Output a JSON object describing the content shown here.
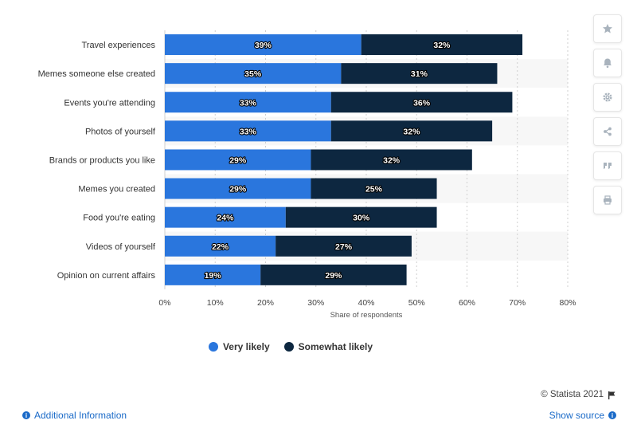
{
  "chart_data": {
    "type": "bar",
    "orientation": "horizontal",
    "stacked": true,
    "categories": [
      "Travel experiences",
      "Memes someone else created",
      "Events you're attending",
      "Photos of yourself",
      "Brands or products you like",
      "Memes you created",
      "Food you're eating",
      "Videos of yourself",
      "Opinion on current affairs"
    ],
    "series": [
      {
        "name": "Very likely",
        "color": "#2a76dd",
        "values": [
          39,
          35,
          33,
          33,
          29,
          29,
          24,
          22,
          19
        ],
        "labels": [
          "39%",
          "35%",
          "33%",
          "33%",
          "29%",
          "29%",
          "24%",
          "22%",
          "19%"
        ]
      },
      {
        "name": "Somewhat likely",
        "color": "#0d2740",
        "values": [
          32,
          31,
          36,
          32,
          32,
          25,
          30,
          27,
          29
        ],
        "labels": [
          "32%",
          "31%",
          "36%",
          "32%",
          "32%",
          "25%",
          "30%",
          "27%",
          "29%"
        ]
      }
    ],
    "xlabel": "Share of respondents",
    "xlim": [
      0,
      80
    ],
    "xticks": [
      0,
      10,
      20,
      30,
      40,
      50,
      60,
      70,
      80
    ],
    "xtick_labels": [
      "0%",
      "10%",
      "20%",
      "30%",
      "40%",
      "50%",
      "60%",
      "70%",
      "80%"
    ],
    "grid": true,
    "legend_position": "bottom"
  },
  "legend": {
    "very_likely": "Very likely",
    "somewhat_likely": "Somewhat likely"
  },
  "footer": {
    "credit": "© Statista 2021",
    "additional_info": "Additional Information",
    "show_source": "Show source"
  },
  "tools": [
    "star-icon",
    "bell-icon",
    "gear-icon",
    "share-icon",
    "quote-icon",
    "print-icon"
  ]
}
